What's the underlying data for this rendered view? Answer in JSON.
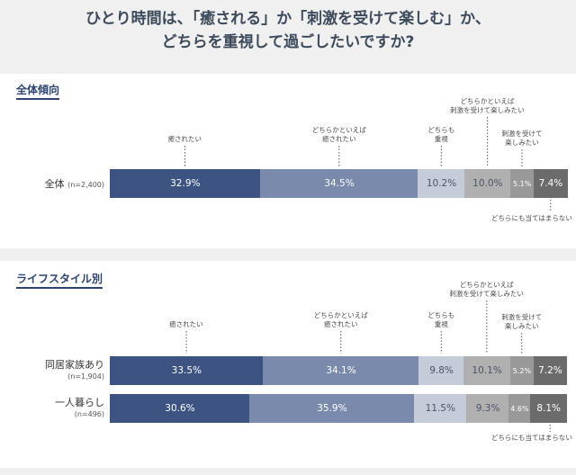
{
  "title": {
    "line1": "ひとり時間は、「癒される」か「刺激を受けて楽しむ」か、",
    "line2": "どちらを重視して過ごしたいですか?"
  },
  "colors": [
    "#3d5483",
    "#7a8aac",
    "#c5cbd8",
    "#b0b0b0",
    "#999999",
    "#6b6b6b"
  ],
  "sections": [
    {
      "heading": "全体傾向",
      "categories": [
        "癒されたい",
        "どちらかといえば\n癒されたい",
        "どちらも\n重視",
        "どちらかといえば\n刺激を受けて楽しみたい",
        "刺激を受けて\n楽しみたい",
        "どちらにも当てはまらない"
      ],
      "rows": [
        {
          "name": "全体",
          "n": "(n=2,400)",
          "values": [
            32.9,
            34.5,
            10.2,
            10.0,
            5.1,
            7.4
          ],
          "labels": [
            "32.9%",
            "34.5%",
            "10.2%",
            "10.0%",
            "5.1%",
            "7.4%"
          ]
        }
      ]
    },
    {
      "heading": "ライフスタイル別",
      "categories": [
        "癒されたい",
        "どちらかといえば\n癒されたい",
        "どちらも\n重視",
        "どちらかといえば\n刺激を受けて楽しみたい",
        "刺激を受けて\n楽しみたい",
        "どちらにも当てはまらない"
      ],
      "rows": [
        {
          "name": "同居家族あり",
          "n": "(n=1,904)",
          "values": [
            33.5,
            34.1,
            9.8,
            10.1,
            5.2,
            7.2
          ],
          "labels": [
            "33.5%",
            "34.1%",
            "9.8%",
            "10.1%",
            "5.2%",
            "7.2%"
          ]
        },
        {
          "name": "一人暮らし",
          "n": "(n=496)",
          "values": [
            30.6,
            35.9,
            11.5,
            9.3,
            4.6,
            8.1
          ],
          "labels": [
            "30.6%",
            "35.9%",
            "11.5%",
            "9.3%",
            "4.6%",
            "8.1%"
          ]
        }
      ]
    }
  ],
  "chart_data": {
    "type": "bar",
    "stacked": true,
    "orientation": "horizontal",
    "title": "ひとり時間は、「癒される」か「刺激を受けて楽しむ」か、どちらを重視して過ごしたいですか?",
    "categories": [
      "全体 (n=2,400)",
      "同居家族あり (n=1,904)",
      "一人暮らし (n=496)"
    ],
    "series": [
      {
        "name": "癒されたい",
        "values": [
          32.9,
          33.5,
          30.6
        ]
      },
      {
        "name": "どちらかといえば癒されたい",
        "values": [
          34.5,
          34.1,
          35.9
        ]
      },
      {
        "name": "どちらも重視",
        "values": [
          10.2,
          9.8,
          11.5
        ]
      },
      {
        "name": "どちらかといえば刺激を受けて楽しみたい",
        "values": [
          10.0,
          10.1,
          9.3
        ]
      },
      {
        "name": "刺激を受けて楽しみたい",
        "values": [
          5.1,
          5.2,
          4.6
        ]
      },
      {
        "name": "どちらにも当てはまらない",
        "values": [
          7.4,
          7.2,
          8.1
        ]
      }
    ],
    "unit": "%",
    "xlim": [
      0,
      100
    ]
  }
}
